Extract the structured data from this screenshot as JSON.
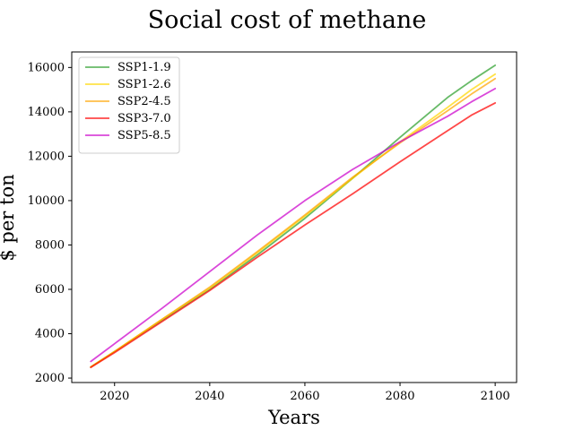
{
  "chart_data": {
    "type": "line",
    "title": "Social cost of methane",
    "xlabel": "Years",
    "ylabel": "$ per ton",
    "xlim": [
      2011,
      2104.5
    ],
    "ylim": [
      1800,
      16700
    ],
    "xticks": [
      2020,
      2040,
      2060,
      2080,
      2100
    ],
    "yticks": [
      2000,
      4000,
      6000,
      8000,
      10000,
      12000,
      14000,
      16000
    ],
    "grid": false,
    "legend_position": "upper-left",
    "x": [
      2015,
      2020,
      2030,
      2040,
      2050,
      2060,
      2070,
      2080,
      2090,
      2095,
      2100
    ],
    "series": [
      {
        "name": "SSP1-1.9",
        "color": "#2ca02c",
        "values": [
          2500,
          3200,
          4600,
          6000,
          7550,
          9200,
          11000,
          12850,
          14650,
          15400,
          16100
        ]
      },
      {
        "name": "SSP1-2.6",
        "color": "#ffd700",
        "values": [
          2500,
          3200,
          4650,
          6050,
          7650,
          9300,
          11000,
          12650,
          14200,
          15000,
          15700
        ]
      },
      {
        "name": "SSP2-4.5",
        "color": "#ffa500",
        "values": [
          2500,
          3200,
          4650,
          6100,
          7700,
          9350,
          11050,
          12600,
          14050,
          14800,
          15500
        ]
      },
      {
        "name": "SSP3-7.0",
        "color": "#ff0000",
        "values": [
          2480,
          3150,
          4550,
          5950,
          7450,
          8900,
          10300,
          11750,
          13150,
          13850,
          14400
        ]
      },
      {
        "name": "SSP5-8.5",
        "color": "#cc00cc",
        "values": [
          2750,
          3550,
          5150,
          6800,
          8450,
          10000,
          11400,
          12650,
          13800,
          14450,
          15050
        ]
      }
    ]
  }
}
